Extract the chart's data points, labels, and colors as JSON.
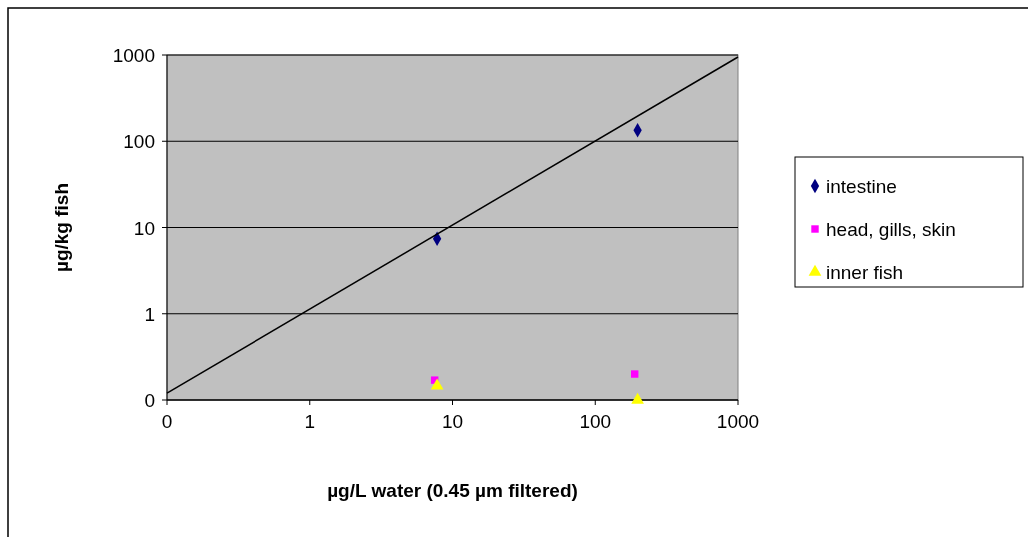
{
  "chart_data": {
    "type": "scatter",
    "xlabel": "µg/L water (0.45 µm filtered)",
    "ylabel": "µg/kg fish",
    "log": "xy",
    "xlim": [
      0.1,
      1000
    ],
    "ylim": [
      0.1,
      1000
    ],
    "xticks": [
      {
        "value": 0.1,
        "label": "0"
      },
      1,
      10,
      100,
      1000
    ],
    "yticks": [
      {
        "value": 0.1,
        "label": "0"
      },
      1,
      10,
      100,
      1000
    ],
    "grid": "y",
    "legend": "right",
    "series": [
      {
        "name": "intestine",
        "color": "#000080",
        "marker": "diamond",
        "x": [
          7.8,
          198
        ],
        "values": [
          7.4,
          134
        ]
      },
      {
        "name": "head, gills, skin",
        "color": "#ff00ff",
        "marker": "square",
        "x": [
          7.5,
          189
        ],
        "values": [
          0.17,
          0.2
        ]
      },
      {
        "name": "inner fish",
        "color": "#ffff00",
        "marker": "triangle",
        "x": [
          7.8,
          198
        ],
        "values": [
          0.146,
          0.1
        ]
      },
      {
        "type": "line",
        "color": "#000000",
        "marker": "none",
        "x": [
          0.1,
          1000
        ],
        "values": [
          0.12,
          948
        ]
      }
    ]
  }
}
